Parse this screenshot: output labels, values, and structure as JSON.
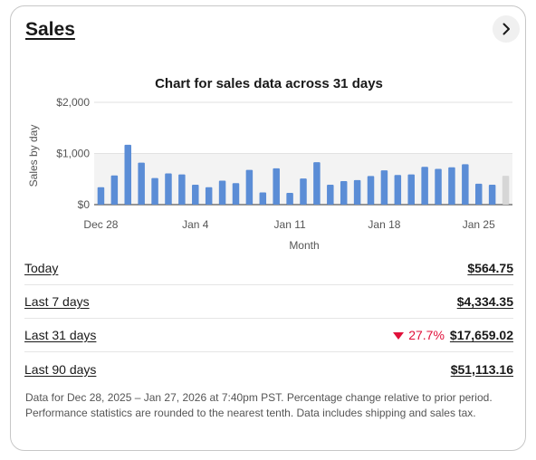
{
  "card": {
    "title": "Sales",
    "nav_icon": "chevron-right-icon"
  },
  "chart_data": {
    "type": "bar",
    "title": "Chart for sales data across 31 days",
    "xlabel": "Month",
    "ylabel": "Sales by day",
    "ylim": [
      0,
      2000
    ],
    "yticks": [
      "$2,000",
      "$1,000",
      "$0"
    ],
    "xticks": [
      "Dec 28",
      "Jan 4",
      "Jan 11",
      "Jan 18",
      "Jan 25"
    ],
    "categories": [
      "Dec 28",
      "Dec 29",
      "Dec 30",
      "Dec 31",
      "Jan 1",
      "Jan 2",
      "Jan 3",
      "Jan 4",
      "Jan 5",
      "Jan 6",
      "Jan 7",
      "Jan 8",
      "Jan 9",
      "Jan 10",
      "Jan 11",
      "Jan 12",
      "Jan 13",
      "Jan 14",
      "Jan 15",
      "Jan 16",
      "Jan 17",
      "Jan 18",
      "Jan 19",
      "Jan 20",
      "Jan 21",
      "Jan 22",
      "Jan 23",
      "Jan 24",
      "Jan 25",
      "Jan 26",
      "Jan 27"
    ],
    "values": [
      340,
      570,
      1170,
      820,
      520,
      610,
      590,
      390,
      340,
      470,
      420,
      680,
      240,
      710,
      230,
      510,
      830,
      390,
      460,
      480,
      560,
      670,
      580,
      590,
      740,
      700,
      730,
      790,
      410,
      390,
      565
    ],
    "highlighted_index": 30,
    "colors": {
      "bar": "#5b8dd6",
      "bar_highlight": "#d6d6d6",
      "band": "#f3f3f3"
    },
    "grid": true
  },
  "summary": {
    "rows": [
      {
        "label": "Today",
        "value": "$564.75",
        "change": ""
      },
      {
        "label": "Last 7 days",
        "value": "$4,334.35",
        "change": ""
      },
      {
        "label": "Last 31 days",
        "value": "$17,659.02",
        "change": "27.7%",
        "change_icon": "arrow-down-icon",
        "change_color": "#e0103a"
      },
      {
        "label": "Last 90 days",
        "value": "$51,113.16",
        "change": ""
      }
    ]
  },
  "footnote": "Data for Dec 28, 2025 – Jan 27, 2026 at 7:40pm PST. Percentage change relative to prior period. Performance statistics are rounded to the nearest tenth. Data includes shipping and sales tax."
}
